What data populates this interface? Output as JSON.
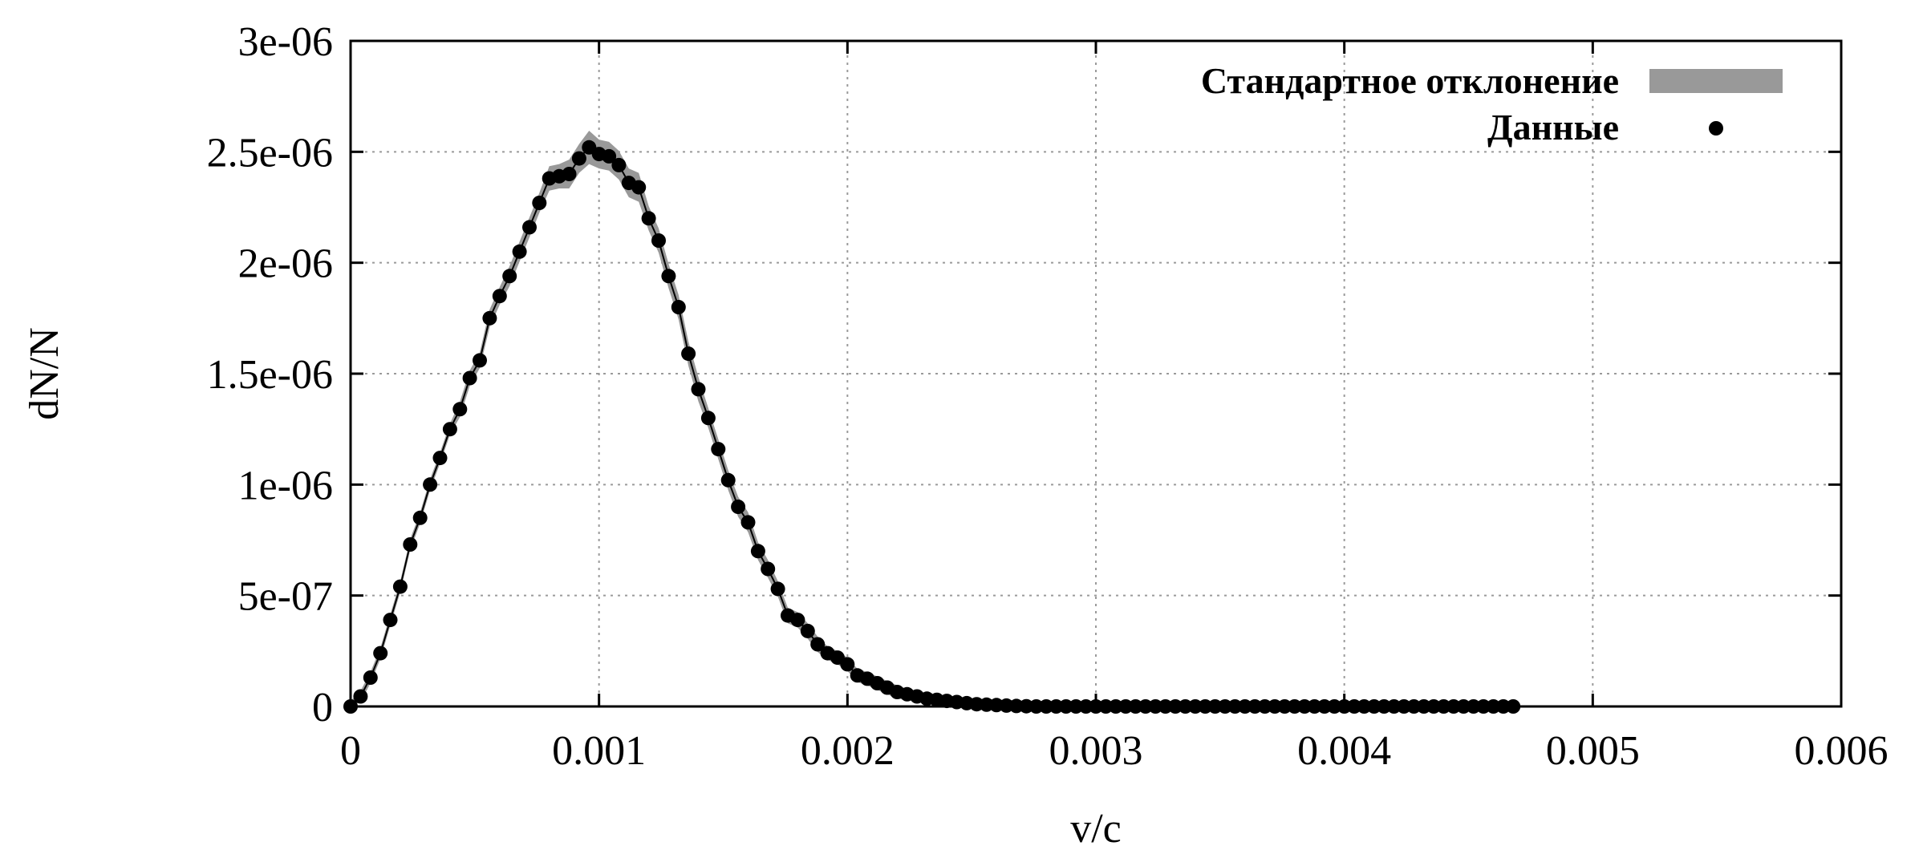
{
  "chart_data": {
    "type": "scatter",
    "title": "",
    "xlabel": "v/c",
    "ylabel": "dN/N",
    "xlim": [
      0,
      0.006
    ],
    "ylim": [
      0,
      3e-06
    ],
    "x_ticks": [
      0,
      0.001,
      0.002,
      0.003,
      0.004,
      0.005,
      0.006
    ],
    "x_tick_labels": [
      "0",
      "0.001",
      "0.002",
      "0.003",
      "0.004",
      "0.005",
      "0.006"
    ],
    "y_ticks": [
      0,
      5e-07,
      1e-06,
      1.5e-06,
      2e-06,
      2.5e-06,
      3e-06
    ],
    "y_tick_labels": [
      "0",
      "5e-07",
      "1e-06",
      "1.5e-06",
      "2e-06",
      "2.5e-06",
      "3e-06"
    ],
    "grid": true,
    "legend_position": "top-right",
    "legend": [
      {
        "label": "Стандартное отклонение",
        "kind": "band",
        "color": "#999999"
      },
      {
        "label": "Данные",
        "kind": "point",
        "color": "#000000"
      }
    ],
    "series": [
      {
        "name": "Данные",
        "color": "#000000",
        "x": [
          0,
          4e-05,
          8e-05,
          0.00012,
          0.00016,
          0.0002,
          0.00024,
          0.00028,
          0.00032,
          0.00036,
          0.0004,
          0.00044,
          0.00048,
          0.00052,
          0.00056,
          0.0006,
          0.00064,
          0.00068,
          0.00072,
          0.00076,
          0.0008,
          0.00084,
          0.00088,
          0.00092,
          0.00096,
          0.001,
          0.00104,
          0.00108,
          0.00112,
          0.00116,
          0.0012,
          0.00124,
          0.00128,
          0.00132,
          0.00136,
          0.0014,
          0.00144,
          0.00148,
          0.00152,
          0.00156,
          0.0016,
          0.00164,
          0.00168,
          0.00172,
          0.00176,
          0.0018,
          0.00184,
          0.00188,
          0.00192,
          0.00196,
          0.002,
          0.00204,
          0.00208,
          0.00212,
          0.00216,
          0.0022,
          0.00224,
          0.00228,
          0.00232,
          0.00236,
          0.0024,
          0.00244,
          0.00248,
          0.00252,
          0.00256,
          0.0026,
          0.00264,
          0.00268,
          0.00272,
          0.00276,
          0.0028,
          0.00284,
          0.00288,
          0.00292,
          0.00296,
          0.003,
          0.00304,
          0.00308,
          0.00312,
          0.00316,
          0.0032,
          0.00324,
          0.00328,
          0.00332,
          0.00336,
          0.0034,
          0.00344,
          0.00348,
          0.00352,
          0.00356,
          0.0036,
          0.00364,
          0.00368,
          0.00372,
          0.00376,
          0.0038,
          0.00384,
          0.00388,
          0.00392,
          0.00396,
          0.004,
          0.00404,
          0.00408,
          0.00412,
          0.00416,
          0.0042,
          0.00424,
          0.00428,
          0.00432,
          0.00436,
          0.0044,
          0.00444,
          0.00448,
          0.00452,
          0.00456,
          0.0046,
          0.00464,
          0.00468
        ],
        "y": [
          0,
          4.5e-08,
          1.3e-07,
          2.4e-07,
          3.9e-07,
          5.4e-07,
          7.3e-07,
          8.5e-07,
          1e-06,
          1.12e-06,
          1.25e-06,
          1.34e-06,
          1.48e-06,
          1.56e-06,
          1.75e-06,
          1.85e-06,
          1.94e-06,
          2.05e-06,
          2.16e-06,
          2.27e-06,
          2.38e-06,
          2.39e-06,
          2.4e-06,
          2.47e-06,
          2.52e-06,
          2.49e-06,
          2.48e-06,
          2.44e-06,
          2.36e-06,
          2.34e-06,
          2.2e-06,
          2.1e-06,
          1.94e-06,
          1.8e-06,
          1.59e-06,
          1.43e-06,
          1.3e-06,
          1.16e-06,
          1.02e-06,
          9e-07,
          8.3e-07,
          7e-07,
          6.2e-07,
          5.3e-07,
          4.1e-07,
          3.9e-07,
          3.4e-07,
          2.8e-07,
          2.4e-07,
          2.2e-07,
          1.9e-07,
          1.4e-07,
          1.25e-07,
          1.05e-07,
          8.5e-08,
          6.5e-08,
          5.5e-08,
          4.5e-08,
          3.5e-08,
          3e-08,
          2.5e-08,
          2e-08,
          1.5e-08,
          1e-08,
          8e-09,
          6e-09,
          4e-09,
          2e-09,
          1e-09,
          0,
          0,
          0,
          0,
          0,
          0,
          0,
          0,
          0,
          0,
          0,
          0,
          0,
          0,
          0,
          0,
          0,
          0,
          0,
          0,
          0,
          0,
          0,
          0,
          0,
          0,
          0,
          0,
          0,
          0,
          0,
          0,
          0,
          0,
          0,
          0,
          0,
          0,
          0,
          0,
          0,
          0,
          0,
          0,
          0,
          0,
          0,
          0,
          0
        ]
      }
    ],
    "std_band": {
      "name": "Стандартное отклонение",
      "color": "#999999",
      "delta": [
        0,
        0,
        0,
        0,
        0,
        0,
        0,
        0,
        0,
        0,
        0,
        1e-08,
        1e-08,
        1e-08,
        1.5e-08,
        1.5e-08,
        2e-08,
        2e-08,
        2e-08,
        2e-08,
        3e-08,
        3e-08,
        4e-08,
        4e-08,
        5e-08,
        4e-08,
        4e-08,
        4e-08,
        4e-08,
        4e-08,
        3e-08,
        3e-08,
        3e-08,
        3e-08,
        3e-08,
        3e-08,
        2e-08,
        2e-08,
        2e-08,
        2e-08,
        2e-08,
        1.5e-08,
        1.5e-08,
        1e-08,
        1e-08,
        1e-08,
        1e-08,
        1e-08,
        5e-09,
        5e-09,
        5e-09,
        5e-09,
        5e-09,
        5e-09,
        5e-09,
        5e-09,
        0,
        0,
        0,
        0,
        0,
        0,
        0,
        0,
        0,
        0,
        0,
        0,
        0,
        0,
        0,
        0,
        0,
        0,
        0,
        0,
        0,
        0,
        0,
        0,
        0,
        0,
        0,
        0,
        0,
        0,
        0,
        0,
        0,
        0,
        0,
        0,
        0,
        0,
        0,
        0,
        0,
        0,
        0,
        0,
        0,
        0,
        0,
        0,
        0,
        0,
        0,
        0,
        0,
        0,
        0,
        0,
        0,
        0,
        0,
        0,
        0,
        0
      ]
    }
  }
}
